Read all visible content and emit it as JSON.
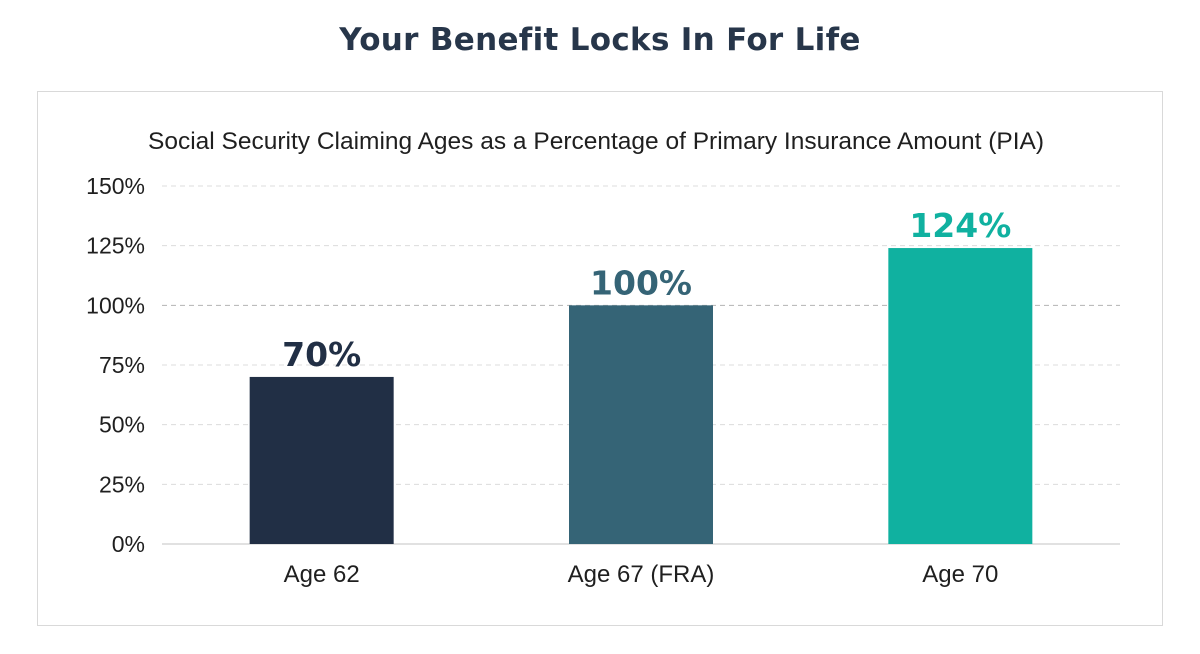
{
  "page": {
    "title": "Your Benefit Locks In For Life"
  },
  "chart_data": {
    "type": "bar",
    "title": "Social Security Claiming Ages as a Percentage of Primary Insurance Amount (PIA)",
    "xlabel": "",
    "ylabel": "",
    "categories": [
      "Age 62",
      "Age 67 (FRA)",
      "Age 70"
    ],
    "values": [
      70,
      100,
      124
    ],
    "data_labels": [
      "70%",
      "100%",
      "124%"
    ],
    "ylim": [
      0,
      150
    ],
    "y_ticks": [
      0,
      25,
      50,
      75,
      100,
      125,
      150
    ],
    "y_tick_labels": [
      "0%",
      "25%",
      "50%",
      "75%",
      "100%",
      "125%",
      "150%"
    ],
    "grid": true,
    "reference_line": 100,
    "bar_colors": [
      "#212f45",
      "#356476",
      "#10b1a0"
    ],
    "label_colors": [
      "#212f45",
      "#356476",
      "#10b1a0"
    ],
    "legend": "none"
  }
}
